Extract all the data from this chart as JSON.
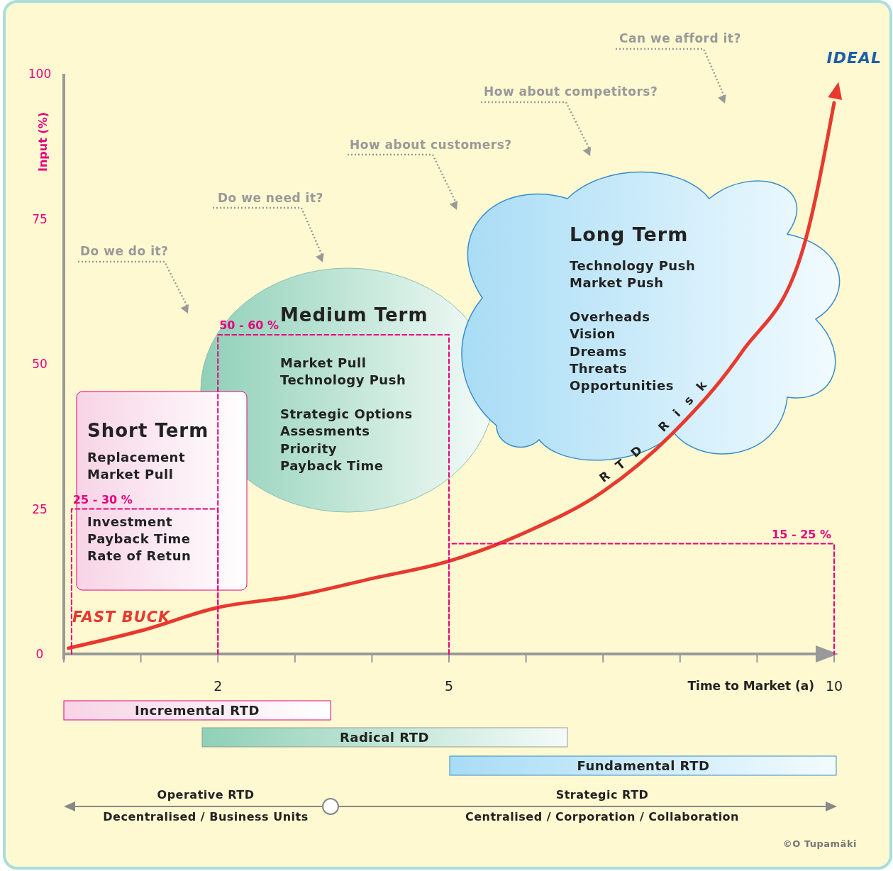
{
  "chart_data": {
    "type": "line",
    "xlabel": "Time to Market (a)",
    "ylabel": "Input (%)",
    "xlim": [
      0,
      10
    ],
    "ylim": [
      0,
      100
    ],
    "xticks": [
      {
        "value": 0,
        "label": null
      },
      {
        "value": 1,
        "label": null
      },
      2,
      {
        "value": 3,
        "label": null
      },
      {
        "value": 4,
        "label": null
      },
      5,
      {
        "value": 6,
        "label": null
      },
      {
        "value": 7,
        "label": null
      },
      {
        "value": 8,
        "label": null
      },
      {
        "value": 9,
        "label": null
      },
      10
    ],
    "yticks": [
      0,
      25,
      50,
      75,
      100
    ],
    "grid": false,
    "legend": false,
    "series": [
      {
        "name": "RTD Risk",
        "color": "#e8392f",
        "x": [
          0.06,
          1,
          2,
          3,
          4,
          5,
          6,
          7,
          7.9,
          8.8,
          9.6,
          10
        ],
        "values": [
          1,
          4,
          8,
          10,
          13,
          16,
          21,
          28,
          38,
          52,
          70,
          95
        ]
      },
      {
        "color": "#e6007e",
        "line_style": "dashed",
        "x": [
          0.1,
          0.1,
          2,
          2
        ],
        "values": [
          0,
          25,
          25,
          0
        ]
      },
      {
        "color": "#e6007e",
        "line_style": "dashed",
        "x": [
          2,
          2,
          5,
          5
        ],
        "values": [
          0,
          55,
          55,
          0
        ]
      },
      {
        "color": "#e6007e",
        "line_style": "dashed",
        "x": [
          5,
          5,
          10,
          10
        ],
        "values": [
          0,
          19,
          19,
          0
        ]
      }
    ],
    "annotations": [
      "Do we do it?",
      "Do we need it?",
      "How about customers?",
      "How about competitors?",
      "Can we afford it?",
      "IDEAL",
      "FAST BUCK",
      "Short Term",
      "Replacement\nMarket Pull",
      "Investment\nPayback Time\nRate of Retun",
      "Medium Term",
      "Market Pull\nTechnology Push\n\nStrategic Options\nAssesments\nPriority\nPayback Time",
      "Long Term",
      "Technology Push\nMarket Push\n\nOverheads\nVision\nDreams\nThreats\nOpportunities",
      "Incremental RTD",
      "Radical RTD",
      "Fundamental RTD",
      "Operative RTD",
      "Decentralised / Business Units",
      "Strategic RTD",
      "Centralised / Corporation / Collaboration",
      "©O Tupamäki",
      {
        "text": "25 - 30 %",
        "x": 0.1,
        "y": 25
      },
      {
        "text": "50 - 60 %",
        "x": 2,
        "y": 55
      },
      {
        "text": "15 - 25 %",
        "x": 10,
        "y": 19
      }
    ]
  }
}
